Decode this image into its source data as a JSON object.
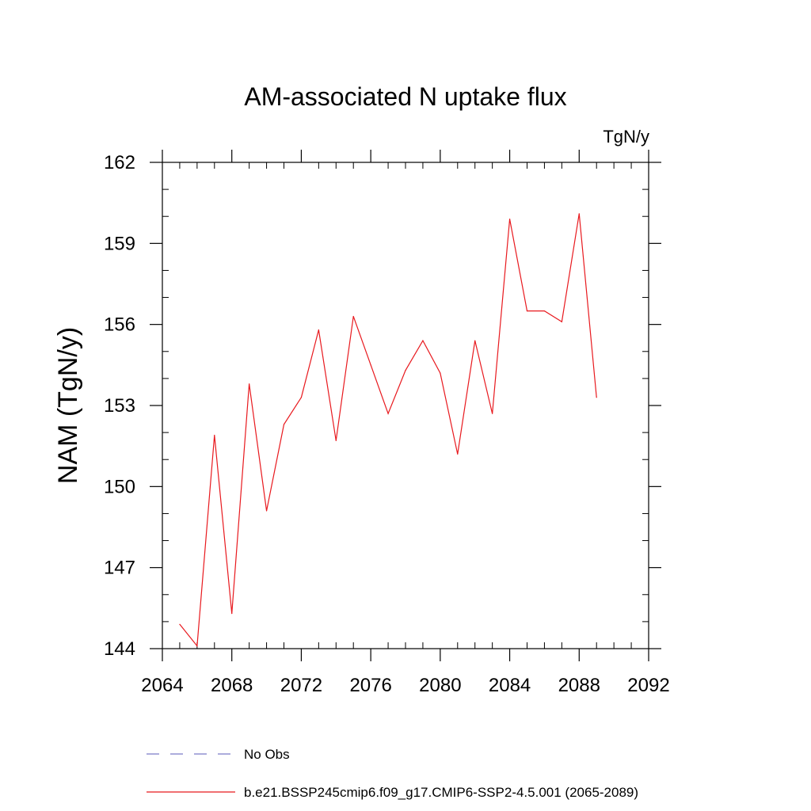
{
  "chart_data": {
    "type": "line",
    "title": "AM-associated N uptake flux",
    "units": "TgN/y",
    "xlabel": "",
    "ylabel": "NAM  (TgN/y)",
    "xlim": [
      2064,
      2092
    ],
    "ylim": [
      144,
      162
    ],
    "x_ticks": [
      "2064",
      "2068",
      "2072",
      "2076",
      "2080",
      "2084",
      "2088",
      "2092"
    ],
    "y_ticks": [
      "144",
      "147",
      "150",
      "153",
      "156",
      "159",
      "162"
    ],
    "x": [
      2065,
      2066,
      2067,
      2068,
      2069,
      2070,
      2071,
      2072,
      2073,
      2074,
      2075,
      2076,
      2077,
      2078,
      2079,
      2080,
      2081,
      2082,
      2083,
      2084,
      2085,
      2086,
      2087,
      2088,
      2089
    ],
    "series": [
      {
        "name": "b.e21.BSSP245cmip6.f09_g17.CMIP6-SSP2-4.5.001 (2065-2089)",
        "color": "#e8191e",
        "values": [
          144.9,
          144.1,
          151.9,
          145.3,
          153.8,
          149.1,
          152.3,
          153.3,
          155.8,
          151.7,
          156.3,
          154.5,
          152.7,
          154.3,
          155.4,
          154.2,
          151.2,
          155.4,
          152.7,
          159.9,
          156.5,
          156.5,
          156.1,
          160.1,
          153.3
        ]
      }
    ],
    "legend": [
      {
        "label": "No Obs",
        "style": "dashed",
        "color": "#7a7ac8"
      },
      {
        "label": "b.e21.BSSP245cmip6.f09_g17.CMIP6-SSP2-4.5.001 (2065-2089)",
        "style": "solid",
        "color": "#e8191e"
      }
    ]
  }
}
